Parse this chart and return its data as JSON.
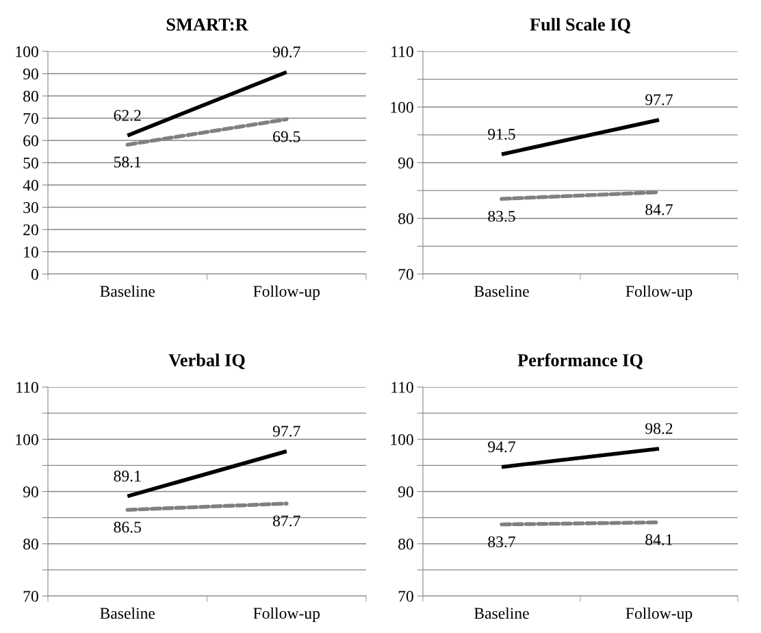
{
  "chart_data": [
    {
      "type": "line",
      "title": "SMART:R",
      "categories": [
        "Baseline",
        "Follow-up"
      ],
      "ylim": [
        0,
        100
      ],
      "yticks": [
        0,
        10,
        20,
        30,
        40,
        50,
        60,
        70,
        80,
        90,
        100
      ],
      "grid": "y",
      "data_labels": true,
      "series": [
        {
          "color": "#000000",
          "line_style": "solid",
          "values": [
            62.2,
            90.7
          ]
        },
        {
          "color": "#808080",
          "line_style": "dashed",
          "values": [
            58.1,
            69.5
          ]
        }
      ]
    },
    {
      "type": "line",
      "title": "Full Scale IQ",
      "categories": [
        "Baseline",
        "Follow-up"
      ],
      "ylim": [
        70,
        110
      ],
      "yticks": [
        70,
        {
          "value": 75,
          "label": null
        },
        80,
        {
          "value": 85,
          "label": null
        },
        90,
        {
          "value": 95,
          "label": null
        },
        100,
        {
          "value": 105,
          "label": null
        },
        110
      ],
      "grid": "y",
      "data_labels": true,
      "series": [
        {
          "color": "#000000",
          "line_style": "solid",
          "values": [
            91.5,
            97.7
          ]
        },
        {
          "color": "#808080",
          "line_style": "dashed",
          "values": [
            83.5,
            84.7
          ]
        }
      ]
    },
    {
      "type": "line",
      "title": "Verbal IQ",
      "categories": [
        "Baseline",
        "Follow-up"
      ],
      "ylim": [
        70,
        110
      ],
      "yticks": [
        70,
        {
          "value": 75,
          "label": null
        },
        80,
        {
          "value": 85,
          "label": null
        },
        90,
        {
          "value": 95,
          "label": null
        },
        100,
        {
          "value": 105,
          "label": null
        },
        110
      ],
      "grid": "y",
      "data_labels": true,
      "series": [
        {
          "color": "#000000",
          "line_style": "solid",
          "values": [
            89.1,
            97.7
          ]
        },
        {
          "color": "#808080",
          "line_style": "dashed",
          "values": [
            86.5,
            87.7
          ]
        }
      ]
    },
    {
      "type": "line",
      "title": "Performance IQ",
      "categories": [
        "Baseline",
        "Follow-up"
      ],
      "ylim": [
        70,
        110
      ],
      "yticks": [
        70,
        {
          "value": 75,
          "label": null
        },
        80,
        {
          "value": 85,
          "label": null
        },
        90,
        {
          "value": 95,
          "label": null
        },
        100,
        {
          "value": 105,
          "label": null
        },
        110
      ],
      "grid": "y",
      "data_labels": true,
      "series": [
        {
          "color": "#000000",
          "line_style": "solid",
          "values": [
            94.7,
            98.2
          ]
        },
        {
          "color": "#808080",
          "line_style": "dashed",
          "values": [
            83.7,
            84.1
          ]
        }
      ]
    }
  ]
}
